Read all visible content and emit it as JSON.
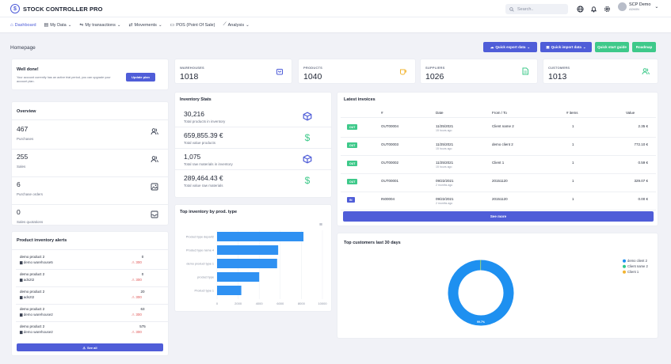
{
  "app": {
    "name": "STOCK CONTROLLER PRO"
  },
  "topbar": {
    "search_placeholder": "Search..",
    "user_name": "SCP Demo",
    "user_role": "ADMIN"
  },
  "nav": [
    {
      "label": "Dashboard",
      "icon": "home-icon"
    },
    {
      "label": "My Data",
      "icon": "database-icon"
    },
    {
      "label": "My transactions",
      "icon": "arrows-icon"
    },
    {
      "label": "Movements",
      "icon": "movements-icon"
    },
    {
      "label": "POS (Point Of Sale)",
      "icon": "monitor-icon"
    },
    {
      "label": "Analysis",
      "icon": "chart-icon"
    }
  ],
  "page": {
    "title": "Homepage"
  },
  "actions": {
    "export": "Quick export data",
    "import": "Quick import data",
    "guide": "Quick start guide",
    "roadmap": "Roadmap"
  },
  "welcome": {
    "title": "Well done!",
    "text": "Your account currently has an active trial period, you can upgrade your account plan.",
    "button": "Update plan"
  },
  "stats": [
    {
      "label": "WAREHOUSES",
      "value": "1018",
      "color": "#4f5dd8"
    },
    {
      "label": "PRODUCTS",
      "value": "1040",
      "color": "#f2b431"
    },
    {
      "label": "SUPPLIERS",
      "value": "1026",
      "color": "#3ec98a"
    },
    {
      "label": "CUSTOMERS",
      "value": "1013",
      "color": "#3ec98a"
    }
  ],
  "overview": {
    "title": "Overview",
    "rows": [
      {
        "value": "467",
        "label": "Purchases"
      },
      {
        "value": "255",
        "label": "Sales"
      },
      {
        "value": "6",
        "label": "Purchase orders"
      },
      {
        "value": "0",
        "label": "Sales quotations"
      }
    ]
  },
  "inventory": {
    "title": "Inventory Stats",
    "rows": [
      {
        "value": "30,216",
        "label": "Total products in inventory"
      },
      {
        "value": "659,855.39 €",
        "label": "Total value products"
      },
      {
        "value": "1,075",
        "label": "Total raw materials in inventory"
      },
      {
        "value": "289,464.43 €",
        "label": "Total value raw materials"
      }
    ]
  },
  "invoices": {
    "title": "Latest invoices",
    "headers": [
      "#",
      "Date",
      "From / To",
      "# items",
      "Value"
    ],
    "see_more": "See more",
    "rows": [
      {
        "type": "OUT",
        "num": "OUT00004",
        "date": "11/25/2021",
        "ago": "15 hours ago",
        "party": "Client name 2",
        "items": "1",
        "value": "2.35 €"
      },
      {
        "type": "OUT",
        "num": "OUT00003",
        "date": "11/25/2021",
        "ago": "15 hours ago",
        "party": "demo client 2",
        "items": "1",
        "value": "772.10 €"
      },
      {
        "type": "OUT",
        "num": "OUT00002",
        "date": "11/25/2021",
        "ago": "15 hours ago",
        "party": "Client 1",
        "items": "1",
        "value": "0.59 €"
      },
      {
        "type": "OUT",
        "num": "OUT00001",
        "date": "09/22/2021",
        "ago": "2 months ago",
        "party": "20151120",
        "items": "1",
        "value": "329.07 €"
      },
      {
        "type": "IN",
        "num": "IN00004",
        "date": "09/22/2021",
        "ago": "2 months ago",
        "party": "20151120",
        "items": "1",
        "value": "0.00 €"
      }
    ]
  },
  "alerts": {
    "title": "Product inventory alerts",
    "see_all": "See all",
    "rows": [
      {
        "product": "demo product 2",
        "warehouse": "demo warehouse5",
        "qty": "0",
        "limit": "300"
      },
      {
        "product": "demo product 2",
        "warehouse": "ads2t2",
        "qty": "0",
        "limit": "300"
      },
      {
        "product": "demo product 2",
        "warehouse": "ads2t2",
        "qty": "20",
        "limit": "300"
      },
      {
        "product": "demo product 2",
        "warehouse": "demo warehouse2",
        "qty": "63",
        "limit": "300"
      },
      {
        "product": "demo product 2",
        "warehouse": "demo warehouse2",
        "qty": "575",
        "limit": "300"
      }
    ]
  },
  "chart_data": [
    {
      "type": "bar",
      "orientation": "horizontal",
      "title": "Top inventory by prod. type",
      "categories": [
        "Product type depart2",
        "Product type name 4",
        "demo product type 1",
        "product type",
        "Product type 1"
      ],
      "values": [
        8200,
        5800,
        5700,
        4000,
        2300
      ],
      "xlim": [
        0,
        10000
      ],
      "xticks": [
        "0",
        "2000",
        "4000",
        "6000",
        "8000",
        "10000"
      ],
      "color": "#2f91f2"
    },
    {
      "type": "pie",
      "title": "Top customers last 30 days",
      "labels": [
        "demo client 2",
        "Client name 2",
        "Client 1"
      ],
      "values": [
        99.7,
        0.3,
        0.1
      ],
      "colors": [
        "#1e90f0",
        "#2ec98b",
        "#f2b431"
      ],
      "slice_label": "99.7%",
      "legend": "right"
    }
  ]
}
